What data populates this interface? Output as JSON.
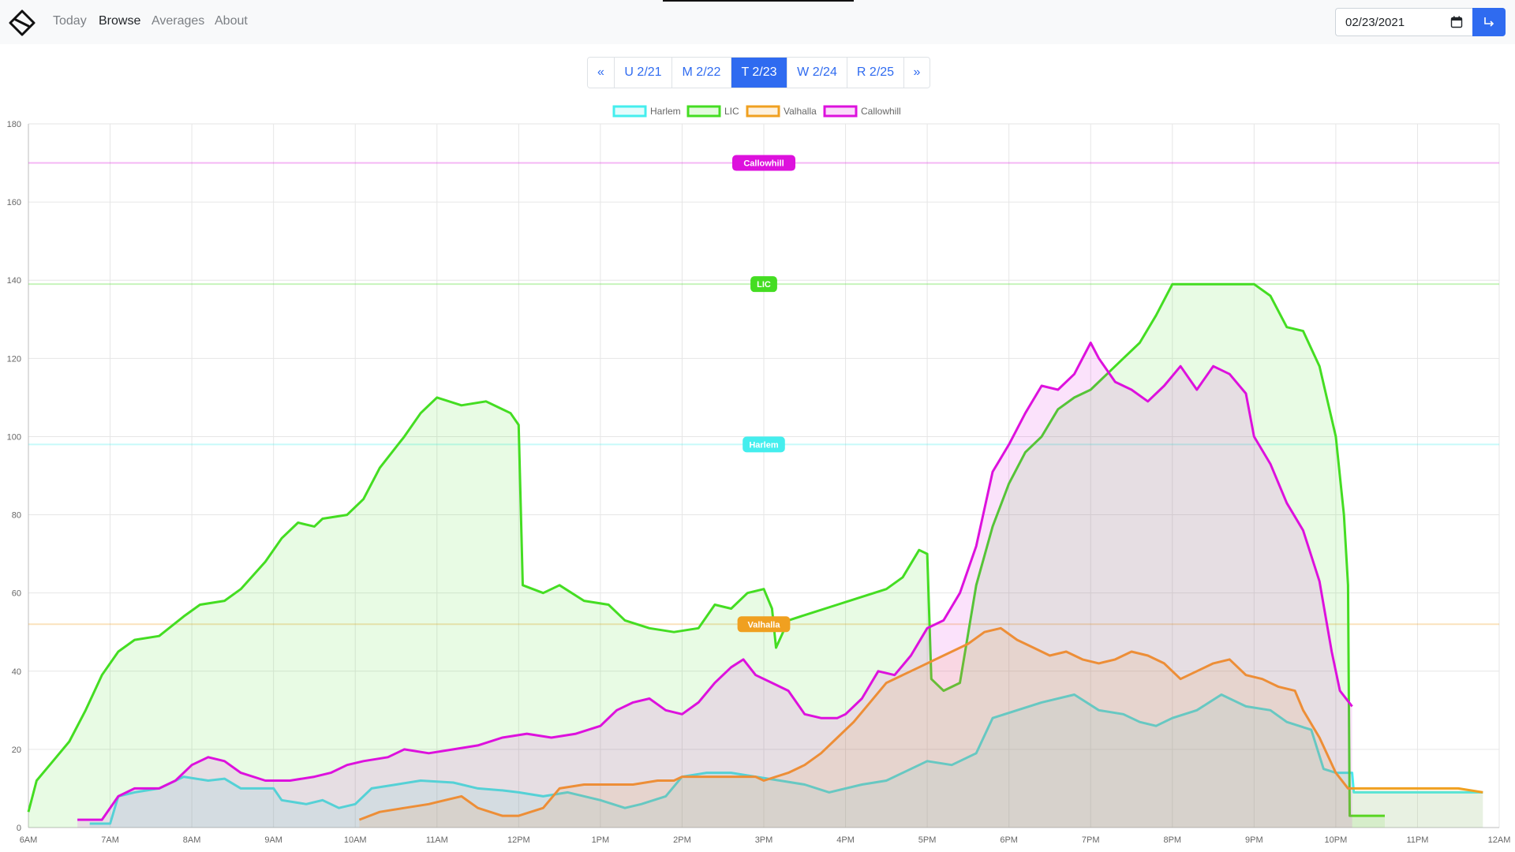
{
  "nav": {
    "links": [
      {
        "label": "Today",
        "active": false
      },
      {
        "label": "Browse",
        "active": true
      },
      {
        "label": "Averages",
        "active": false
      },
      {
        "label": "About",
        "active": false
      }
    ]
  },
  "date_input": {
    "value": "02/23/2021",
    "icon": "calendar-icon"
  },
  "go_button": {
    "icon": "enter-arrow-icon",
    "color": "#2f6bf0"
  },
  "pager": {
    "items": [
      {
        "label": "«",
        "active": false
      },
      {
        "label": "U 2/21",
        "active": false
      },
      {
        "label": "M 2/22",
        "active": false
      },
      {
        "label": "T 2/23",
        "active": true
      },
      {
        "label": "W 2/24",
        "active": false
      },
      {
        "label": "R 2/25",
        "active": false
      },
      {
        "label": "»",
        "active": false
      }
    ]
  },
  "chart_data": {
    "type": "area",
    "title": "",
    "xlabel": "",
    "ylabel": "",
    "x_range_hours": [
      6,
      24
    ],
    "ylim": [
      0,
      180
    ],
    "y_ticks": [
      0,
      20,
      40,
      60,
      80,
      100,
      120,
      140,
      160,
      180
    ],
    "x_tick_labels": [
      "6AM",
      "7AM",
      "8AM",
      "9AM",
      "10AM",
      "11AM",
      "12PM",
      "1PM",
      "2PM",
      "3PM",
      "4PM",
      "5PM",
      "6PM",
      "7PM",
      "8PM",
      "9PM",
      "10PM",
      "11PM",
      "12AM"
    ],
    "grid": true,
    "legend_position": "top",
    "series": [
      {
        "name": "Harlem",
        "color": "#44eeee",
        "capacity": 98,
        "points": [
          [
            6.75,
            1
          ],
          [
            7.0,
            1
          ],
          [
            7.1,
            8
          ],
          [
            7.3,
            9
          ],
          [
            7.6,
            10
          ],
          [
            7.9,
            13
          ],
          [
            8.2,
            12
          ],
          [
            8.4,
            12.5
          ],
          [
            8.6,
            10
          ],
          [
            9.0,
            10
          ],
          [
            9.1,
            7
          ],
          [
            9.4,
            6
          ],
          [
            9.6,
            7
          ],
          [
            9.8,
            5
          ],
          [
            10.0,
            6
          ],
          [
            10.2,
            10
          ],
          [
            10.5,
            11
          ],
          [
            10.8,
            12
          ],
          [
            11.2,
            11.5
          ],
          [
            11.5,
            10
          ],
          [
            11.8,
            9.5
          ],
          [
            12.0,
            9
          ],
          [
            12.3,
            8
          ],
          [
            12.6,
            9
          ],
          [
            13.0,
            7
          ],
          [
            13.3,
            5
          ],
          [
            13.5,
            6
          ],
          [
            13.8,
            8
          ],
          [
            14.0,
            13
          ],
          [
            14.3,
            14
          ],
          [
            14.6,
            14
          ],
          [
            14.9,
            13
          ],
          [
            15.2,
            12
          ],
          [
            15.5,
            11
          ],
          [
            15.8,
            9
          ],
          [
            16.2,
            11
          ],
          [
            16.5,
            12
          ],
          [
            16.8,
            15
          ],
          [
            17.0,
            17
          ],
          [
            17.3,
            16
          ],
          [
            17.6,
            19
          ],
          [
            17.8,
            28
          ],
          [
            18.1,
            30
          ],
          [
            18.4,
            32
          ],
          [
            18.8,
            34
          ],
          [
            19.1,
            30
          ],
          [
            19.4,
            29
          ],
          [
            19.6,
            27
          ],
          [
            19.8,
            26
          ],
          [
            20.0,
            28
          ],
          [
            20.3,
            30
          ],
          [
            20.6,
            34
          ],
          [
            20.9,
            31
          ],
          [
            21.2,
            30
          ],
          [
            21.4,
            27
          ],
          [
            21.7,
            25
          ],
          [
            21.85,
            15
          ],
          [
            22.0,
            14
          ],
          [
            22.2,
            14
          ],
          [
            22.22,
            9
          ],
          [
            22.5,
            9
          ],
          [
            23.0,
            9
          ],
          [
            23.5,
            9
          ],
          [
            23.8,
            9
          ]
        ]
      },
      {
        "name": "LIC",
        "color": "#44dd22",
        "capacity": 139,
        "points": [
          [
            6.0,
            4
          ],
          [
            6.1,
            12
          ],
          [
            6.3,
            17
          ],
          [
            6.5,
            22
          ],
          [
            6.7,
            30
          ],
          [
            6.9,
            39
          ],
          [
            7.1,
            45
          ],
          [
            7.3,
            48
          ],
          [
            7.6,
            49
          ],
          [
            7.9,
            54
          ],
          [
            8.1,
            57
          ],
          [
            8.4,
            58
          ],
          [
            8.6,
            61
          ],
          [
            8.9,
            68
          ],
          [
            9.1,
            74
          ],
          [
            9.3,
            78
          ],
          [
            9.5,
            77
          ],
          [
            9.6,
            79
          ],
          [
            9.9,
            80
          ],
          [
            10.1,
            84
          ],
          [
            10.3,
            92
          ],
          [
            10.6,
            100
          ],
          [
            10.8,
            106
          ],
          [
            11.0,
            110
          ],
          [
            11.3,
            108
          ],
          [
            11.6,
            109
          ],
          [
            11.9,
            106
          ],
          [
            12.0,
            103
          ],
          [
            12.05,
            62
          ],
          [
            12.3,
            60
          ],
          [
            12.5,
            62
          ],
          [
            12.8,
            58
          ],
          [
            13.1,
            57
          ],
          [
            13.3,
            53
          ],
          [
            13.6,
            51
          ],
          [
            13.9,
            50
          ],
          [
            14.2,
            51
          ],
          [
            14.4,
            57
          ],
          [
            14.6,
            56
          ],
          [
            14.8,
            60
          ],
          [
            15.0,
            61
          ],
          [
            15.1,
            56
          ],
          [
            15.15,
            46
          ],
          [
            15.3,
            53
          ],
          [
            15.6,
            55
          ],
          [
            15.9,
            57
          ],
          [
            16.2,
            59
          ],
          [
            16.5,
            61
          ],
          [
            16.7,
            64
          ],
          [
            16.9,
            71
          ],
          [
            17.0,
            70
          ],
          [
            17.05,
            38
          ],
          [
            17.2,
            35
          ],
          [
            17.4,
            37
          ],
          [
            17.6,
            62
          ],
          [
            17.8,
            77
          ],
          [
            18.0,
            88
          ],
          [
            18.2,
            96
          ],
          [
            18.4,
            100
          ],
          [
            18.6,
            107
          ],
          [
            18.8,
            110
          ],
          [
            19.0,
            112
          ],
          [
            19.2,
            116
          ],
          [
            19.4,
            120
          ],
          [
            19.6,
            124
          ],
          [
            19.8,
            131
          ],
          [
            20.0,
            139
          ],
          [
            20.5,
            139
          ],
          [
            21.0,
            139
          ],
          [
            21.2,
            136
          ],
          [
            21.4,
            128
          ],
          [
            21.6,
            127
          ],
          [
            21.8,
            118
          ],
          [
            22.0,
            100
          ],
          [
            22.1,
            80
          ],
          [
            22.15,
            62
          ],
          [
            22.17,
            3
          ],
          [
            22.4,
            3
          ],
          [
            22.6,
            3
          ]
        ]
      },
      {
        "name": "Valhalla",
        "color": "#f0a020",
        "capacity": 52,
        "points": [
          [
            10.05,
            2
          ],
          [
            10.3,
            4
          ],
          [
            10.6,
            5
          ],
          [
            10.9,
            6
          ],
          [
            11.1,
            7
          ],
          [
            11.3,
            8
          ],
          [
            11.5,
            5
          ],
          [
            11.8,
            3
          ],
          [
            12.0,
            3
          ],
          [
            12.3,
            5
          ],
          [
            12.5,
            10
          ],
          [
            12.8,
            11
          ],
          [
            13.1,
            11
          ],
          [
            13.4,
            11
          ],
          [
            13.7,
            12
          ],
          [
            13.9,
            12
          ],
          [
            14.0,
            13
          ],
          [
            14.3,
            13
          ],
          [
            14.6,
            13
          ],
          [
            14.9,
            13
          ],
          [
            15.0,
            12
          ],
          [
            15.3,
            14
          ],
          [
            15.5,
            16
          ],
          [
            15.7,
            19
          ],
          [
            15.9,
            23
          ],
          [
            16.1,
            27
          ],
          [
            16.3,
            32
          ],
          [
            16.5,
            37
          ],
          [
            16.7,
            39
          ],
          [
            16.9,
            41
          ],
          [
            17.1,
            43
          ],
          [
            17.3,
            45
          ],
          [
            17.5,
            47
          ],
          [
            17.7,
            50
          ],
          [
            17.9,
            51
          ],
          [
            18.1,
            48
          ],
          [
            18.3,
            46
          ],
          [
            18.5,
            44
          ],
          [
            18.7,
            45
          ],
          [
            18.9,
            43
          ],
          [
            19.1,
            42
          ],
          [
            19.3,
            43
          ],
          [
            19.5,
            45
          ],
          [
            19.7,
            44
          ],
          [
            19.9,
            42
          ],
          [
            20.1,
            38
          ],
          [
            20.3,
            40
          ],
          [
            20.5,
            42
          ],
          [
            20.7,
            43
          ],
          [
            20.9,
            39
          ],
          [
            21.1,
            38
          ],
          [
            21.3,
            36
          ],
          [
            21.5,
            35
          ],
          [
            21.6,
            30
          ],
          [
            21.8,
            23
          ],
          [
            22.0,
            14
          ],
          [
            22.15,
            10
          ],
          [
            22.5,
            10
          ],
          [
            23.0,
            10
          ],
          [
            23.5,
            10
          ],
          [
            23.8,
            9
          ]
        ]
      },
      {
        "name": "Callowhill",
        "color": "#dd11dd",
        "capacity": 170,
        "points": [
          [
            6.6,
            2
          ],
          [
            6.9,
            2
          ],
          [
            7.1,
            8
          ],
          [
            7.3,
            10
          ],
          [
            7.6,
            10
          ],
          [
            7.8,
            12
          ],
          [
            8.0,
            16
          ],
          [
            8.2,
            18
          ],
          [
            8.4,
            17
          ],
          [
            8.6,
            14
          ],
          [
            8.9,
            12
          ],
          [
            9.2,
            12
          ],
          [
            9.5,
            13
          ],
          [
            9.7,
            14
          ],
          [
            9.9,
            16
          ],
          [
            10.1,
            17
          ],
          [
            10.4,
            18
          ],
          [
            10.6,
            20
          ],
          [
            10.9,
            19
          ],
          [
            11.2,
            20
          ],
          [
            11.5,
            21
          ],
          [
            11.8,
            23
          ],
          [
            12.1,
            24
          ],
          [
            12.4,
            23
          ],
          [
            12.7,
            24
          ],
          [
            13.0,
            26
          ],
          [
            13.2,
            30
          ],
          [
            13.4,
            32
          ],
          [
            13.6,
            33
          ],
          [
            13.8,
            30
          ],
          [
            14.0,
            29
          ],
          [
            14.2,
            32
          ],
          [
            14.4,
            37
          ],
          [
            14.6,
            41
          ],
          [
            14.75,
            43
          ],
          [
            14.9,
            39
          ],
          [
            15.1,
            37
          ],
          [
            15.3,
            35
          ],
          [
            15.5,
            29
          ],
          [
            15.7,
            28
          ],
          [
            15.9,
            28
          ],
          [
            16.0,
            29
          ],
          [
            16.2,
            33
          ],
          [
            16.4,
            40
          ],
          [
            16.6,
            39
          ],
          [
            16.8,
            44
          ],
          [
            17.0,
            51
          ],
          [
            17.2,
            53
          ],
          [
            17.4,
            60
          ],
          [
            17.6,
            72
          ],
          [
            17.8,
            91
          ],
          [
            18.0,
            98
          ],
          [
            18.2,
            106
          ],
          [
            18.4,
            113
          ],
          [
            18.6,
            112
          ],
          [
            18.8,
            116
          ],
          [
            19.0,
            124
          ],
          [
            19.1,
            120
          ],
          [
            19.3,
            114
          ],
          [
            19.5,
            112
          ],
          [
            19.7,
            109
          ],
          [
            19.9,
            113
          ],
          [
            20.1,
            118
          ],
          [
            20.3,
            112
          ],
          [
            20.5,
            118
          ],
          [
            20.7,
            116
          ],
          [
            20.9,
            111
          ],
          [
            21.0,
            100
          ],
          [
            21.2,
            93
          ],
          [
            21.4,
            83
          ],
          [
            21.6,
            76
          ],
          [
            21.8,
            63
          ],
          [
            21.95,
            45
          ],
          [
            22.05,
            35
          ],
          [
            22.2,
            31
          ]
        ]
      }
    ]
  }
}
